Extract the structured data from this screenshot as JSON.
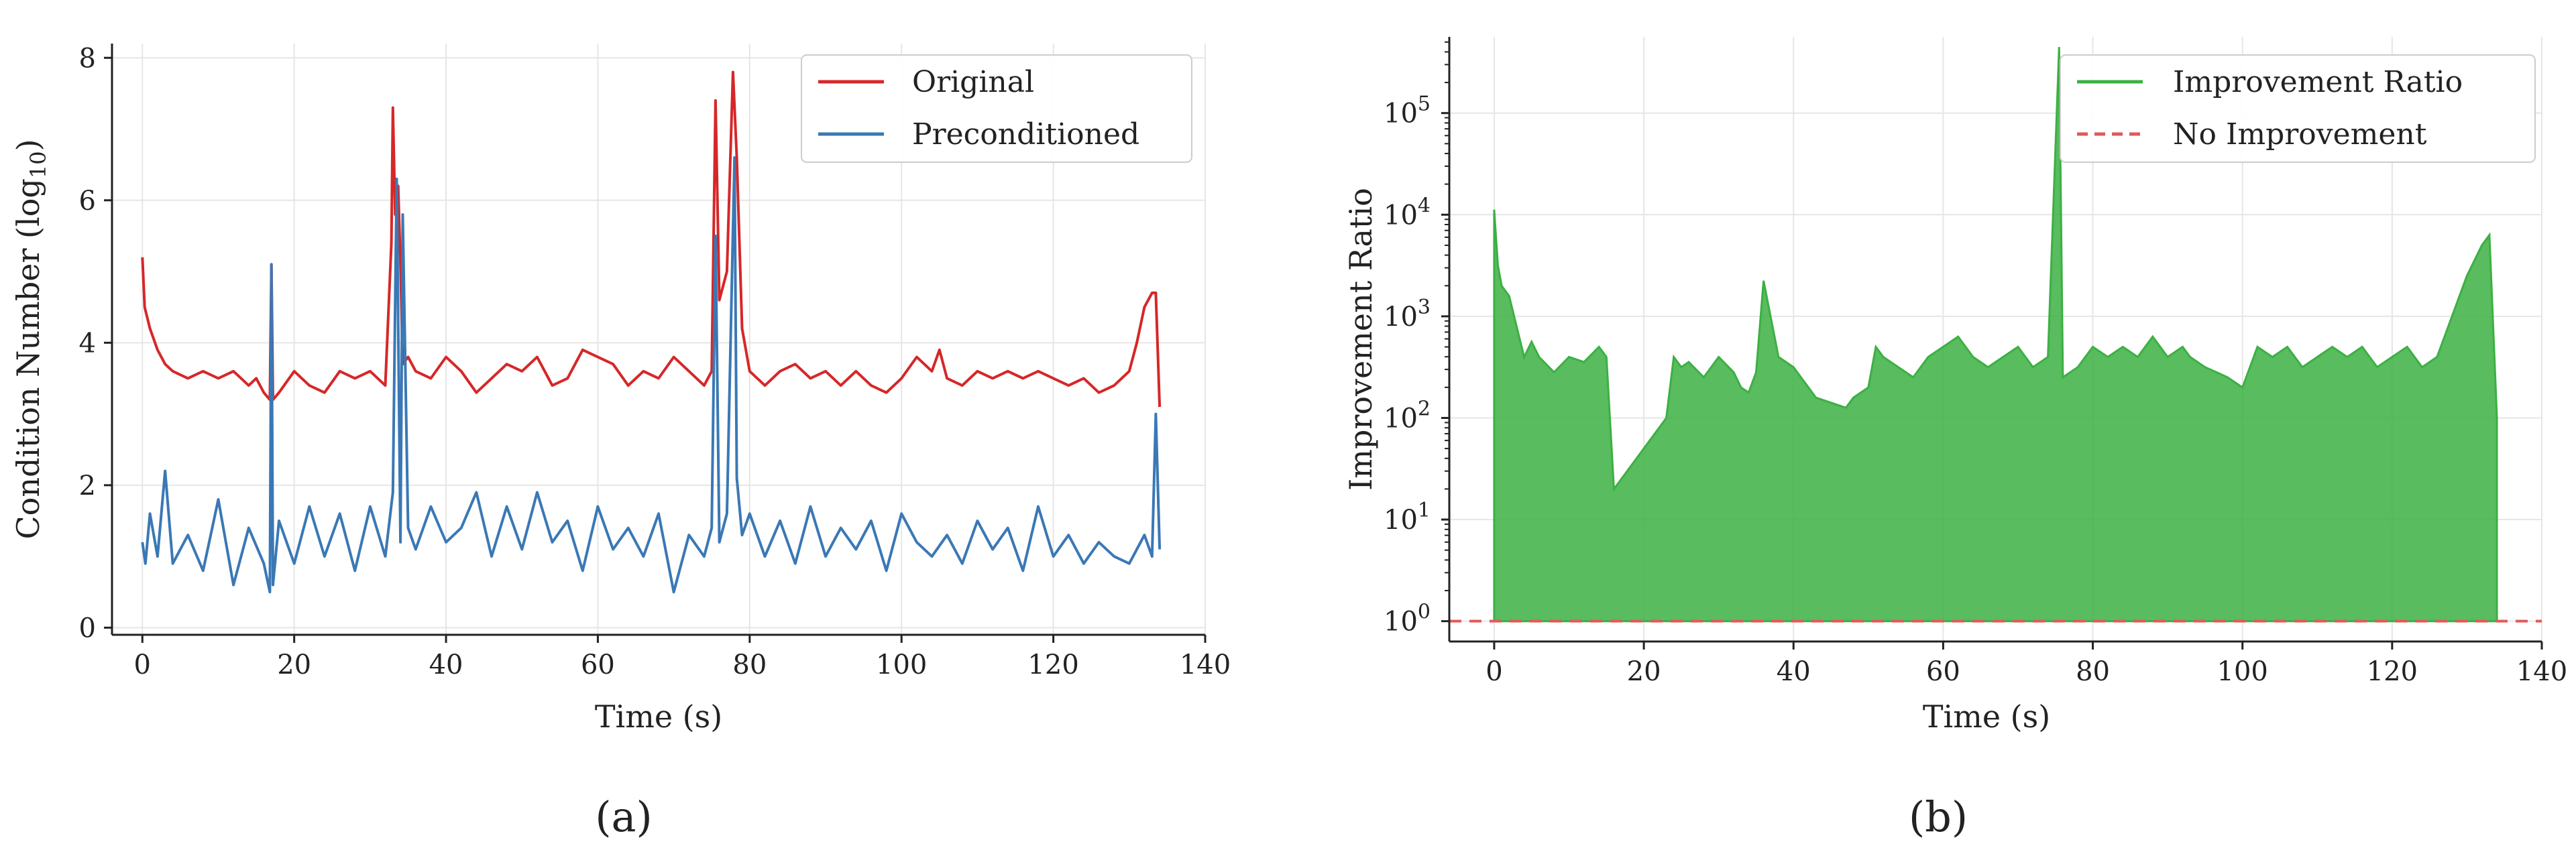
{
  "chart_data": [
    {
      "id": "a",
      "panel_label": "(a)",
      "type": "line",
      "title": "",
      "xlabel": "Time (s)",
      "ylabel": "Condition Number (log",
      "ylabel_subscript": "10",
      "ylabel_close": ")",
      "xlim": [
        -4,
        140
      ],
      "ylim": [
        -0.1,
        8.2
      ],
      "xticks": [
        0,
        20,
        40,
        60,
        80,
        100,
        120,
        140
      ],
      "yticks": [
        0,
        2,
        4,
        6,
        8
      ],
      "grid": true,
      "legend_position": "top-right",
      "series": [
        {
          "name": "Original",
          "color": "#d62728",
          "x": [
            0,
            0.3,
            1,
            2,
            3,
            4,
            6,
            8,
            10,
            12,
            14,
            15,
            16,
            16.8,
            17,
            17.2,
            18,
            20,
            22,
            24,
            26,
            28,
            30,
            32,
            32.8,
            33.0,
            33.3,
            33.7,
            34,
            34.3,
            35,
            36,
            38,
            40,
            42,
            44,
            46,
            48,
            50,
            52,
            54,
            56,
            58,
            60,
            62,
            64,
            66,
            68,
            70,
            72,
            74,
            75,
            75.5,
            76,
            77,
            77.8,
            78.3,
            79,
            80,
            82,
            84,
            86,
            88,
            90,
            92,
            94,
            96,
            98,
            100,
            102,
            104,
            105,
            106,
            108,
            110,
            112,
            114,
            116,
            118,
            120,
            122,
            124,
            126,
            128,
            130,
            131,
            132,
            133,
            133.5,
            134
          ],
          "values": [
            5.2,
            4.5,
            4.2,
            3.9,
            3.7,
            3.6,
            3.5,
            3.6,
            3.5,
            3.6,
            3.4,
            3.5,
            3.3,
            3.2,
            5.1,
            3.2,
            3.3,
            3.6,
            3.4,
            3.3,
            3.6,
            3.5,
            3.6,
            3.4,
            5.4,
            7.3,
            5.8,
            6.2,
            5.1,
            3.7,
            3.8,
            3.6,
            3.5,
            3.8,
            3.6,
            3.3,
            3.5,
            3.7,
            3.6,
            3.8,
            3.4,
            3.5,
            3.9,
            3.8,
            3.7,
            3.4,
            3.6,
            3.5,
            3.8,
            3.6,
            3.4,
            3.6,
            7.4,
            4.6,
            5.0,
            7.8,
            6.6,
            4.2,
            3.6,
            3.4,
            3.6,
            3.7,
            3.5,
            3.6,
            3.4,
            3.6,
            3.4,
            3.3,
            3.5,
            3.8,
            3.6,
            3.9,
            3.5,
            3.4,
            3.6,
            3.5,
            3.6,
            3.5,
            3.6,
            3.5,
            3.4,
            3.5,
            3.3,
            3.4,
            3.6,
            4.0,
            4.5,
            4.7,
            4.7,
            3.1
          ]
        },
        {
          "name": "Preconditioned",
          "color": "#3a78b5",
          "x": [
            0,
            0.4,
            1,
            2,
            3,
            4,
            6,
            8,
            10,
            12,
            14,
            16,
            16.8,
            17,
            17.2,
            18,
            20,
            22,
            24,
            26,
            28,
            30,
            32,
            33,
            33.5,
            34,
            34.3,
            35,
            36,
            38,
            40,
            42,
            44,
            46,
            48,
            50,
            52,
            54,
            56,
            58,
            60,
            62,
            64,
            66,
            68,
            70,
            72,
            74,
            75,
            75.5,
            76,
            77,
            78,
            78.3,
            79,
            80,
            82,
            84,
            86,
            88,
            90,
            92,
            94,
            96,
            98,
            100,
            102,
            104,
            106,
            108,
            110,
            112,
            114,
            116,
            118,
            120,
            122,
            124,
            126,
            128,
            130,
            132,
            133,
            133.5,
            134
          ],
          "values": [
            1.2,
            0.9,
            1.6,
            1.0,
            2.2,
            0.9,
            1.3,
            0.8,
            1.8,
            0.6,
            1.4,
            0.9,
            0.5,
            5.1,
            0.6,
            1.5,
            0.9,
            1.7,
            1.0,
            1.6,
            0.8,
            1.7,
            1.0,
            1.9,
            6.3,
            1.2,
            5.8,
            1.4,
            1.1,
            1.7,
            1.2,
            1.4,
            1.9,
            1.0,
            1.7,
            1.1,
            1.9,
            1.2,
            1.5,
            0.8,
            1.7,
            1.1,
            1.4,
            1.0,
            1.6,
            0.5,
            1.3,
            1.0,
            1.4,
            5.5,
            1.2,
            1.6,
            6.6,
            2.1,
            1.3,
            1.6,
            1.0,
            1.5,
            0.9,
            1.7,
            1.0,
            1.4,
            1.1,
            1.5,
            0.8,
            1.6,
            1.2,
            1.0,
            1.3,
            0.9,
            1.5,
            1.1,
            1.4,
            0.8,
            1.7,
            1.0,
            1.3,
            0.9,
            1.2,
            1.0,
            0.9,
            1.3,
            1.0,
            3.0,
            1.1
          ]
        }
      ]
    },
    {
      "id": "b",
      "panel_label": "(b)",
      "type": "line",
      "title": "",
      "xlabel": "Time (s)",
      "ylabel": "Improvement Ratio",
      "yscale": "log",
      "xlim": [
        -6,
        140
      ],
      "ylim_log10": [
        -0.2,
        5.75
      ],
      "xticks": [
        0,
        20,
        40,
        60,
        80,
        100,
        120,
        140
      ],
      "ytick_base": "10",
      "yticks_exp": [
        0,
        1,
        2,
        3,
        4,
        5
      ],
      "grid": true,
      "legend_position": "top-right",
      "series": [
        {
          "name": "Improvement Ratio",
          "color": "#3cb043",
          "x": [
            0,
            0.5,
            1,
            2,
            3,
            4,
            5,
            6,
            8,
            10,
            12,
            14,
            15,
            16,
            23,
            24,
            25,
            26,
            28,
            30,
            32,
            33,
            34,
            35,
            36,
            38,
            40,
            42,
            43,
            47,
            48,
            50,
            51,
            52,
            54,
            56,
            58,
            60,
            62,
            64,
            66,
            68,
            70,
            72,
            74,
            75.5,
            76,
            78,
            80,
            82,
            84,
            86,
            88,
            90,
            92,
            93,
            95,
            98,
            100,
            102,
            104,
            106,
            108,
            110,
            112,
            114,
            116,
            118,
            120,
            122,
            124,
            126,
            128,
            130,
            132,
            133,
            134
          ],
          "values_log10": [
            4.05,
            3.5,
            3.3,
            3.2,
            2.9,
            2.6,
            2.75,
            2.6,
            2.45,
            2.6,
            2.55,
            2.7,
            2.6,
            1.3,
            2.0,
            2.6,
            2.5,
            2.55,
            2.4,
            2.6,
            2.45,
            2.3,
            2.25,
            2.45,
            3.35,
            2.6,
            2.5,
            2.3,
            2.2,
            2.1,
            2.2,
            2.3,
            2.7,
            2.6,
            2.5,
            2.4,
            2.6,
            2.7,
            2.8,
            2.6,
            2.5,
            2.6,
            2.7,
            2.5,
            2.6,
            5.65,
            2.4,
            2.5,
            2.7,
            2.6,
            2.7,
            2.6,
            2.8,
            2.6,
            2.7,
            2.6,
            2.5,
            2.4,
            2.3,
            2.7,
            2.6,
            2.7,
            2.5,
            2.6,
            2.7,
            2.6,
            2.7,
            2.5,
            2.6,
            2.7,
            2.5,
            2.6,
            3.0,
            3.4,
            3.7,
            3.8,
            2.0
          ]
        },
        {
          "name": "No Improvement",
          "color": "#e05a5a",
          "style": "dashed",
          "value_log10": 0
        }
      ]
    }
  ]
}
